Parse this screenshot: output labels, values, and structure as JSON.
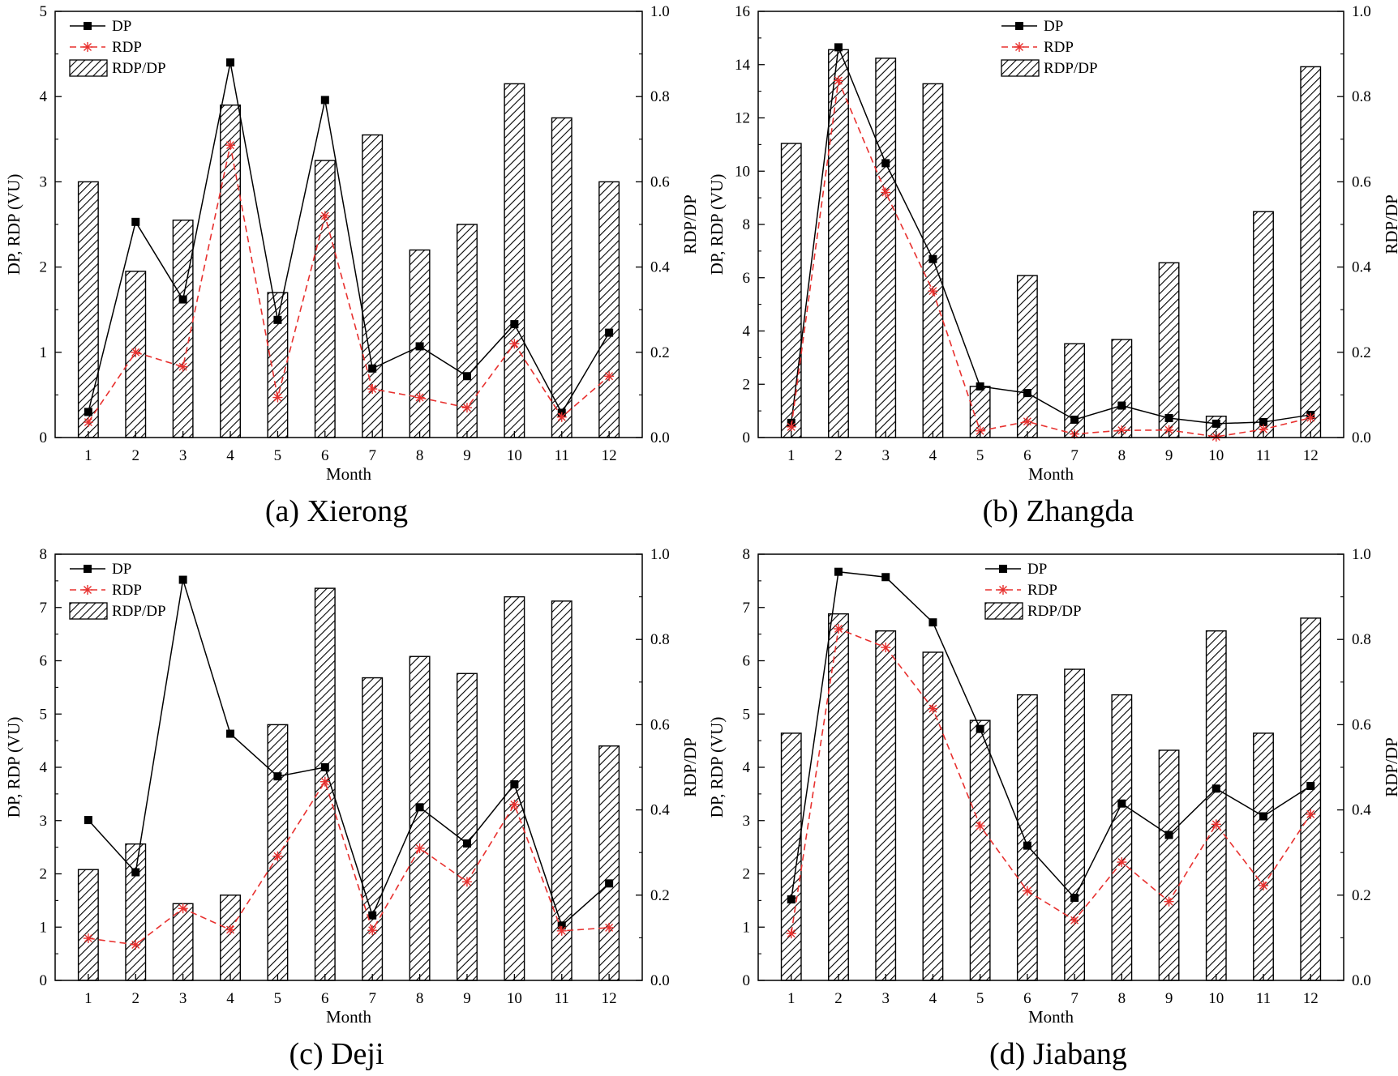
{
  "chart_data": [
    {
      "type": "bar",
      "caption": "(a) Xierong",
      "categories": [
        "1",
        "2",
        "3",
        "4",
        "5",
        "6",
        "7",
        "8",
        "9",
        "10",
        "11",
        "12"
      ],
      "xlabel": "Month",
      "ylabel": "DP, RDP (VU)",
      "y2label": "RDP/DP",
      "ylim": [
        0,
        5
      ],
      "yticks": [
        "0",
        "1",
        "2",
        "3",
        "4",
        "5"
      ],
      "y2lim": [
        0,
        1
      ],
      "y2ticks": [
        "0.0",
        "0.2",
        "0.4",
        "0.6",
        "0.8",
        "1.0"
      ],
      "legend": [
        "DP",
        "RDP",
        "RDP/DP"
      ],
      "series": [
        {
          "name": "DP",
          "kind": "line",
          "axis": "left",
          "values": [
            0.3,
            2.53,
            1.62,
            4.4,
            1.38,
            3.96,
            0.81,
            1.07,
            0.72,
            1.33,
            0.29,
            1.23
          ]
        },
        {
          "name": "RDP",
          "kind": "line",
          "axis": "left",
          "values": [
            0.18,
            1.0,
            0.83,
            3.43,
            0.47,
            2.6,
            0.57,
            0.47,
            0.35,
            1.1,
            0.24,
            0.72
          ]
        },
        {
          "name": "RDP/DP",
          "kind": "bar",
          "axis": "right",
          "values": [
            0.6,
            0.39,
            0.51,
            0.78,
            0.34,
            0.65,
            0.71,
            0.44,
            0.5,
            0.83,
            0.75,
            0.6
          ]
        }
      ]
    },
    {
      "type": "bar",
      "caption": "(b) Zhangda",
      "categories": [
        "1",
        "2",
        "3",
        "4",
        "5",
        "6",
        "7",
        "8",
        "9",
        "10",
        "11",
        "12"
      ],
      "xlabel": "Month",
      "ylabel": "DP, RDP (VU)",
      "y2label": "RDP/DP",
      "ylim": [
        0,
        16
      ],
      "yticks": [
        "0",
        "2",
        "4",
        "6",
        "8",
        "10",
        "12",
        "14",
        "16"
      ],
      "y2lim": [
        0,
        1
      ],
      "y2ticks": [
        "0.0",
        "0.2",
        "0.4",
        "0.6",
        "0.8",
        "1.0"
      ],
      "legend": [
        "DP",
        "RDP",
        "RDP/DP"
      ],
      "series": [
        {
          "name": "DP",
          "kind": "line",
          "axis": "left",
          "values": [
            0.55,
            14.65,
            10.3,
            6.7,
            1.92,
            1.67,
            0.67,
            1.2,
            0.73,
            0.52,
            0.58,
            0.85
          ]
        },
        {
          "name": "RDP",
          "kind": "line",
          "axis": "left",
          "values": [
            0.4,
            13.4,
            9.2,
            5.5,
            0.25,
            0.6,
            0.13,
            0.27,
            0.28,
            0.03,
            0.31,
            0.74
          ]
        },
        {
          "name": "RDP/DP",
          "kind": "bar",
          "axis": "right",
          "values": [
            0.69,
            0.91,
            0.89,
            0.83,
            0.12,
            0.38,
            0.22,
            0.23,
            0.41,
            0.05,
            0.53,
            0.87
          ]
        }
      ]
    },
    {
      "type": "bar",
      "caption": "(c) Deji",
      "categories": [
        "1",
        "2",
        "3",
        "4",
        "5",
        "6",
        "7",
        "8",
        "9",
        "10",
        "11",
        "12"
      ],
      "xlabel": "Month",
      "ylabel": "DP, RDP (VU)",
      "y2label": "RDP/DP",
      "ylim": [
        0,
        8
      ],
      "yticks": [
        "0",
        "1",
        "2",
        "3",
        "4",
        "5",
        "6",
        "7",
        "8"
      ],
      "y2lim": [
        0,
        1
      ],
      "y2ticks": [
        "0.0",
        "0.2",
        "0.4",
        "0.6",
        "0.8",
        "1.0"
      ],
      "legend": [
        "DP",
        "RDP",
        "RDP/DP"
      ],
      "series": [
        {
          "name": "DP",
          "kind": "line",
          "axis": "left",
          "values": [
            3.01,
            2.03,
            7.52,
            4.63,
            3.83,
            4.0,
            1.22,
            3.25,
            2.57,
            3.68,
            1.03,
            1.82
          ]
        },
        {
          "name": "RDP",
          "kind": "line",
          "axis": "left",
          "values": [
            0.79,
            0.67,
            1.35,
            0.95,
            2.33,
            3.73,
            0.94,
            2.48,
            1.85,
            3.3,
            0.93,
            0.99
          ]
        },
        {
          "name": "RDP/DP",
          "kind": "bar",
          "axis": "right",
          "values": [
            0.26,
            0.32,
            0.18,
            0.2,
            0.6,
            0.92,
            0.71,
            0.76,
            0.72,
            0.9,
            0.89,
            0.55
          ]
        }
      ]
    },
    {
      "type": "bar",
      "caption": "(d) Jiabang",
      "categories": [
        "1",
        "2",
        "3",
        "4",
        "5",
        "6",
        "7",
        "8",
        "9",
        "10",
        "11",
        "12"
      ],
      "xlabel": "Month",
      "ylabel": "DP, RDP (VU)",
      "y2label": "RDP/DP",
      "ylim": [
        0,
        8
      ],
      "yticks": [
        "0",
        "1",
        "2",
        "3",
        "4",
        "5",
        "6",
        "7",
        "8"
      ],
      "y2lim": [
        0,
        1
      ],
      "y2ticks": [
        "0.0",
        "0.2",
        "0.4",
        "0.6",
        "0.8",
        "1.0"
      ],
      "legend": [
        "DP",
        "RDP",
        "RDP/DP"
      ],
      "series": [
        {
          "name": "DP",
          "kind": "line",
          "axis": "left",
          "values": [
            1.52,
            7.67,
            7.57,
            6.72,
            4.72,
            2.53,
            1.55,
            3.32,
            2.73,
            3.6,
            3.08,
            3.65
          ]
        },
        {
          "name": "RDP",
          "kind": "line",
          "axis": "left",
          "values": [
            0.88,
            6.6,
            6.25,
            5.1,
            2.9,
            1.68,
            1.13,
            2.22,
            1.48,
            2.93,
            1.78,
            3.12
          ]
        },
        {
          "name": "RDP/DP",
          "kind": "bar",
          "axis": "right",
          "values": [
            0.58,
            0.86,
            0.82,
            0.77,
            0.61,
            0.67,
            0.73,
            0.67,
            0.54,
            0.82,
            0.58,
            0.85
          ]
        }
      ]
    }
  ],
  "style": {
    "dp_color": "#000000",
    "rdp_color": "#e8312f",
    "bar_fill": "#ffffff",
    "hatch_color": "#000000"
  }
}
